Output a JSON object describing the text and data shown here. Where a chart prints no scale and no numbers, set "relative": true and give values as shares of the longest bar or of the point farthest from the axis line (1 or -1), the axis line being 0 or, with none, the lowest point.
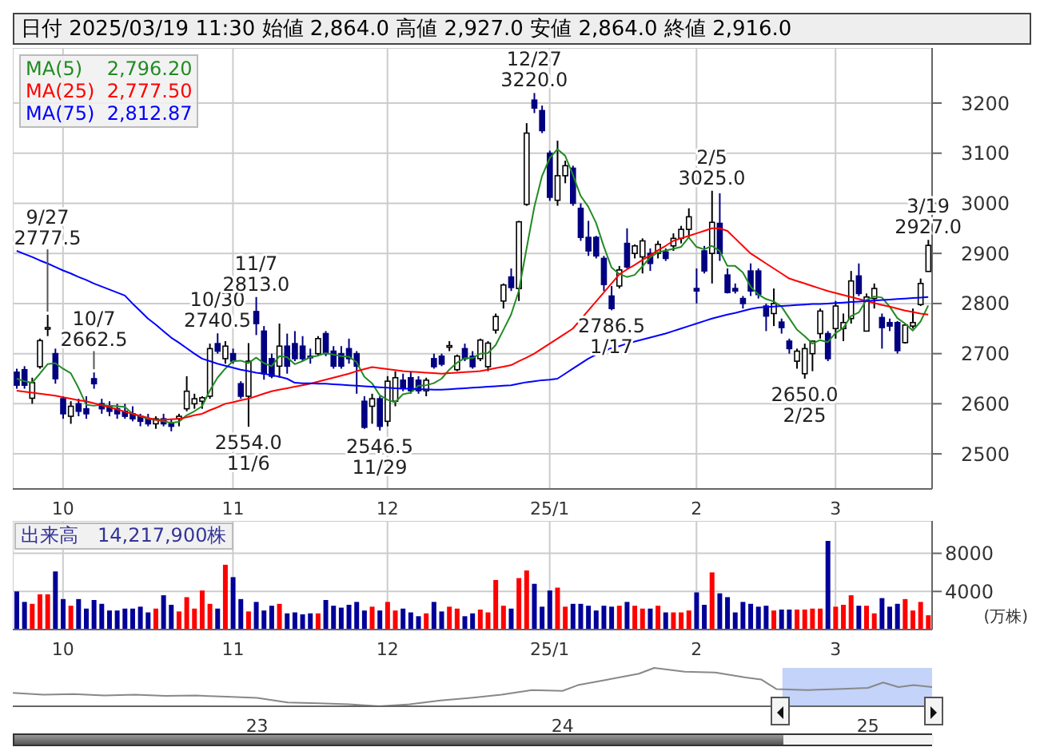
{
  "chart_data": [
    {
      "type": "candlestick",
      "title": "日付 2025/03/19 11:30 始値 2,864.0 高値 2,927.0 安値 2,864.0 終値 2,916.0",
      "colors": [
        "#000080",
        "#000080",
        "#ffffff",
        "#ffffff",
        "#ffffff",
        "#000080",
        "#000080",
        "#ffffff",
        "#000080",
        "#000080",
        "#000080",
        "#000080",
        "#000080",
        "#000080",
        "#000080",
        "#000080",
        "#000080",
        "#000080",
        "#ffffff",
        "#000080",
        "#000080",
        "#ffffff",
        "#ffffff",
        "#ffffff",
        "#ffffff",
        "#ffffff",
        "#000080",
        "#ffffff",
        "#000080",
        "#000080",
        "#ffffff",
        "#000080",
        "#000080",
        "#000080",
        "#ffffff",
        "#000080",
        "#000080",
        "#000080",
        "#000080",
        "#ffffff",
        "#000080",
        "#000080",
        "#000080",
        "#000080",
        "#000080",
        "#000080",
        "#ffffff",
        "#000080",
        "#ffffff",
        "#ffffff",
        "#000080",
        "#000080",
        "#000080",
        "#ffffff",
        "#000080",
        "#000080",
        "#ffffff",
        "#ffffff",
        "#000080",
        "#000080",
        "#ffffff",
        "#ffffff",
        "#ffffff",
        "#ffffff",
        "#000080",
        "#ffffff",
        "#ffffff",
        "#000080",
        "#000080",
        "#000080",
        "#ffffff",
        "#ffffff",
        "#000080",
        "#000080",
        "#000080",
        "#000080",
        "#000080",
        "#000080",
        "#ffffff",
        "#000080",
        "#ffffff",
        "#ffffff",
        "#000080",
        "#ffffff",
        "#000080",
        "#ffffff",
        "#ffffff",
        "#ffffff",
        "#000080",
        "#000080",
        "#ffffff",
        "#000080",
        "#000080",
        "#000080",
        "#000080",
        "#000080",
        "#000080",
        "#000080",
        "#ffffff",
        "#000080",
        "#000080",
        "#ffffff",
        "#ffffff",
        "#ffffff",
        "#ffffff",
        "#000080",
        "#ffffff",
        "#ffffff",
        "#ffffff",
        "#000080",
        "#ffffff",
        "#ffffff",
        "#000080",
        "#000080",
        "#000080",
        "#ffffff",
        "#ffffff",
        "#ffffff",
        "#ffffff"
      ],
      "categories": [
        null,
        null,
        null,
        null,
        null,
        null,
        "10",
        null,
        null,
        null,
        null,
        null,
        null,
        null,
        null,
        null,
        null,
        null,
        null,
        null,
        null,
        null,
        null,
        null,
        null,
        null,
        null,
        null,
        "11",
        null,
        null,
        null,
        null,
        null,
        null,
        null,
        null,
        null,
        null,
        null,
        null,
        null,
        null,
        null,
        null,
        null,
        null,
        null,
        "12",
        null,
        null,
        null,
        null,
        null,
        null,
        null,
        null,
        null,
        null,
        null,
        null,
        null,
        null,
        null,
        null,
        null,
        null,
        null,
        null,
        "25/1",
        null,
        null,
        null,
        null,
        null,
        null,
        null,
        null,
        null,
        null,
        null,
        null,
        null,
        null,
        null,
        null,
        null,
        null,
        "2",
        null,
        null,
        null,
        null,
        null,
        null,
        null,
        null,
        null,
        null,
        null,
        null,
        null,
        null,
        null,
        null,
        null,
        "3",
        null,
        null,
        null,
        null,
        null,
        null,
        null,
        null,
        null,
        null,
        null,
        null
      ],
      "ohlc": [
        [
          2663,
          2670,
          2630,
          2637
        ],
        [
          2668,
          2675,
          2630,
          2637
        ],
        [
          2611,
          2652,
          2600,
          2642
        ],
        [
          2674,
          2730,
          2670,
          2726
        ],
        [
          2750,
          2777.5,
          2735,
          2752
        ],
        [
          2700,
          2710,
          2640,
          2650
        ],
        [
          2610,
          2615,
          2570,
          2580
        ],
        [
          2575,
          2605,
          2560,
          2595
        ],
        [
          2600,
          2610,
          2575,
          2585
        ],
        [
          2590,
          2615,
          2570,
          2580
        ],
        [
          2650,
          2662.5,
          2630,
          2640
        ],
        [
          2600,
          2610,
          2580,
          2590
        ],
        [
          2595,
          2605,
          2575,
          2585
        ],
        [
          2590,
          2600,
          2570,
          2580
        ],
        [
          2585,
          2600,
          2570,
          2575
        ],
        [
          2580,
          2595,
          2565,
          2570
        ],
        [
          2575,
          2580,
          2555,
          2565
        ],
        [
          2570,
          2580,
          2555,
          2560
        ],
        [
          2560,
          2575,
          2550,
          2570
        ],
        [
          2570,
          2580,
          2555,
          2560
        ],
        [
          2560,
          2570,
          2545,
          2555
        ],
        [
          2570,
          2580,
          2555,
          2575
        ],
        [
          2590,
          2655,
          2585,
          2625
        ],
        [
          2600,
          2620,
          2590,
          2610
        ],
        [
          2605,
          2615,
          2590,
          2612
        ],
        [
          2615,
          2720,
          2610,
          2710
        ],
        [
          2720,
          2740.5,
          2700,
          2705
        ],
        [
          2690,
          2725,
          2680,
          2715
        ],
        [
          2700,
          2710,
          2680,
          2685
        ],
        [
          2640,
          2645,
          2610,
          2615
        ],
        [
          2615,
          2721,
          2554,
          2685
        ],
        [
          2784,
          2813,
          2737,
          2760
        ],
        [
          2745,
          2755,
          2648,
          2660
        ],
        [
          2690,
          2700,
          2651,
          2655
        ],
        [
          2675,
          2760,
          2652,
          2715
        ],
        [
          2715,
          2740,
          2660,
          2675
        ],
        [
          2720,
          2745,
          2685,
          2690
        ],
        [
          2715,
          2735,
          2685,
          2690
        ],
        [
          2695,
          2710,
          2680,
          2693
        ],
        [
          2700,
          2735,
          2695,
          2730
        ],
        [
          2740,
          2745,
          2695,
          2700
        ],
        [
          2705,
          2715,
          2670,
          2675
        ],
        [
          2700,
          2715,
          2670,
          2675
        ],
        [
          2710,
          2730,
          2680,
          2690
        ],
        [
          2700,
          2705,
          2620,
          2675
        ],
        [
          2605,
          2615,
          2550,
          2553
        ],
        [
          2595,
          2620,
          2560,
          2610
        ],
        [
          2610,
          2615,
          2546.5,
          2555
        ],
        [
          2565,
          2655,
          2555,
          2645
        ],
        [
          2605,
          2665,
          2595,
          2652
        ],
        [
          2647,
          2660,
          2625,
          2632
        ],
        [
          2652,
          2665,
          2620,
          2626
        ],
        [
          2647,
          2655,
          2620,
          2626
        ],
        [
          2626,
          2652,
          2615,
          2647
        ],
        [
          2690,
          2700,
          2670,
          2674
        ],
        [
          2695,
          2700,
          2675,
          2679
        ],
        [
          2715,
          2725,
          2705,
          2716
        ],
        [
          2668,
          2698,
          2665,
          2695
        ],
        [
          2710,
          2720,
          2685,
          2690
        ],
        [
          2695,
          2705,
          2670,
          2674
        ],
        [
          2690,
          2730,
          2685,
          2727
        ],
        [
          2674,
          2725,
          2665,
          2721
        ],
        [
          2747,
          2780,
          2740,
          2774
        ],
        [
          2805,
          2840,
          2790,
          2837
        ],
        [
          2853,
          2870,
          2825,
          2832
        ],
        [
          2830,
          2965,
          2805,
          2963
        ],
        [
          2998,
          3160,
          2995,
          3140
        ],
        [
          3206,
          3220,
          3180,
          3190
        ],
        [
          3185,
          3195,
          3140,
          3145
        ],
        [
          3100,
          3105,
          3005,
          3012
        ],
        [
          3006,
          3125,
          2995,
          3055
        ],
        [
          3055,
          3085,
          3040,
          3075
        ],
        [
          3070,
          3075,
          2995,
          3000
        ],
        [
          2990,
          3000,
          2925,
          2932
        ],
        [
          2932,
          2965,
          2895,
          2905
        ],
        [
          2932,
          2935,
          2890,
          2895
        ],
        [
          2890,
          2895,
          2825,
          2838
        ],
        [
          2815,
          2835,
          2786.5,
          2790
        ],
        [
          2835,
          2875,
          2830,
          2867
        ],
        [
          2920,
          2950,
          2870,
          2873
        ],
        [
          2900,
          2918,
          2890,
          2915
        ],
        [
          2893,
          2930,
          2860,
          2925
        ],
        [
          2900,
          2910,
          2865,
          2880
        ],
        [
          2900,
          2925,
          2890,
          2918
        ],
        [
          2903,
          2910,
          2885,
          2890
        ],
        [
          2915,
          2940,
          2905,
          2930
        ],
        [
          2930,
          2955,
          2920,
          2948
        ],
        [
          2948,
          2990,
          2930,
          2973
        ],
        [
          2830,
          2870,
          2800,
          2825
        ],
        [
          2905,
          2915,
          2860,
          2865
        ],
        [
          2900,
          3025,
          2840,
          2962
        ],
        [
          2960,
          3020,
          2885,
          2900
        ],
        [
          2857,
          2870,
          2820,
          2822
        ],
        [
          2830,
          2840,
          2820,
          2825
        ],
        [
          2810,
          2815,
          2790,
          2800
        ],
        [
          2865,
          2880,
          2815,
          2825
        ],
        [
          2865,
          2870,
          2810,
          2818
        ],
        [
          2795,
          2800,
          2745,
          2775
        ],
        [
          2780,
          2830,
          2755,
          2800
        ],
        [
          2763,
          2770,
          2740,
          2752
        ],
        [
          2725,
          2730,
          2700,
          2710
        ],
        [
          2685,
          2710,
          2670,
          2705
        ],
        [
          2660,
          2720,
          2650,
          2710
        ],
        [
          2700,
          2725,
          2665,
          2725
        ],
        [
          2740,
          2790,
          2730,
          2785
        ],
        [
          2740,
          2745,
          2685,
          2690
        ],
        [
          2750,
          2805,
          2730,
          2795
        ],
        [
          2750,
          2780,
          2725,
          2762
        ],
        [
          2770,
          2865,
          2760,
          2845
        ],
        [
          2855,
          2880,
          2815,
          2820
        ],
        [
          2745,
          2820,
          2745,
          2813
        ],
        [
          2810,
          2840,
          2790,
          2830
        ],
        [
          2772,
          2780,
          2710,
          2752
        ],
        [
          2762,
          2770,
          2745,
          2755
        ],
        [
          2762,
          2765,
          2700,
          2706
        ],
        [
          2722,
          2760,
          2720,
          2757
        ],
        [
          2755,
          2790,
          2750,
          2762
        ],
        [
          2798,
          2850,
          2795,
          2840
        ],
        [
          2864,
          2927,
          2864,
          2916
        ]
      ],
      "series": [
        {
          "type": "line",
          "name": "MA(5)    2,796.20",
          "color": "#228b22",
          "values": [
            2650,
            2645,
            2642,
            2660,
            2679,
            2681,
            2670,
            2661,
            2632,
            2598,
            2596,
            2598,
            2596,
            2595,
            2594,
            2580,
            2575,
            2570,
            2568,
            2565,
            2562,
            2564,
            2577,
            2585,
            2595,
            2626,
            2652,
            2670,
            2685,
            2686,
            2681,
            2692,
            2681,
            2675,
            2695,
            2693,
            2679,
            2685,
            2693,
            2696,
            2701,
            2698,
            2695,
            2694,
            2683,
            2654,
            2641,
            2617,
            2608,
            2603,
            2619,
            2622,
            2636,
            2637,
            2641,
            2650,
            2668,
            2682,
            2691,
            2691,
            2700,
            2701,
            2717,
            2747,
            2778,
            2825,
            2909,
            2992,
            3054,
            3090,
            3108,
            3095,
            3057,
            3015,
            2993,
            2961,
            2914,
            2872,
            2859,
            2853,
            2857,
            2874,
            2892,
            2902,
            2906,
            2909,
            2913,
            2932,
            2913,
            2908,
            2915,
            2905,
            2875,
            2875,
            2862,
            2834,
            2818,
            2809,
            2804,
            2794,
            2771,
            2748,
            2735,
            2720,
            2727,
            2723,
            2741,
            2751,
            2775,
            2782,
            2807,
            2814,
            2812,
            2794,
            2771,
            2760,
            2746,
            2764,
            2796
          ]
        },
        {
          "type": "line",
          "name": "MA(25)  2,777.50",
          "color": "#ff0000",
          "values": [
            2626,
            2624,
            2622,
            2620,
            2618,
            2616,
            2613,
            2610,
            2607,
            2605,
            2601,
            2597,
            2593,
            2589,
            2584,
            2580,
            2576,
            2572,
            2568,
            2568,
            2569,
            2570,
            2573,
            2577,
            2580,
            2587,
            2593,
            2600,
            2603,
            2607,
            2610,
            2615,
            2620,
            2625,
            2628,
            2631,
            2634,
            2637,
            2640,
            2644,
            2648,
            2652,
            2656,
            2660,
            2665,
            2669,
            2673,
            2671,
            2669,
            2667,
            2665,
            2664,
            2663,
            2662,
            2661,
            2660,
            2661,
            2662,
            2663,
            2664,
            2665,
            2668,
            2671,
            2674,
            2677,
            2685,
            2692,
            2700,
            2710,
            2720,
            2730,
            2740,
            2750,
            2768,
            2786,
            2804,
            2822,
            2840,
            2858,
            2868,
            2877,
            2887,
            2896,
            2906,
            2915,
            2925,
            2930,
            2935,
            2940,
            2945,
            2950,
            2950,
            2945,
            2930,
            2915,
            2900,
            2890,
            2880,
            2870,
            2860,
            2850,
            2845,
            2840,
            2835,
            2830,
            2825,
            2821,
            2817,
            2813,
            2809,
            2805,
            2801,
            2797,
            2794,
            2790,
            2786,
            2783,
            2780,
            2778
          ]
        },
        {
          "type": "line",
          "name": "MA(75)  2,812.87",
          "color": "#0000ff",
          "values": [
            2905,
            2899,
            2893,
            2886,
            2880,
            2873,
            2866,
            2860,
            2853,
            2847,
            2840,
            2834,
            2828,
            2822,
            2816,
            2800,
            2785,
            2770,
            2758,
            2745,
            2732,
            2722,
            2711,
            2700,
            2690,
            2685,
            2680,
            2676,
            2672,
            2668,
            2665,
            2662,
            2660,
            2657,
            2654,
            2650,
            2642,
            2641,
            2641,
            2640,
            2640,
            2639,
            2638,
            2637,
            2636,
            2635,
            2634,
            2633,
            2632,
            2631,
            2630,
            2630,
            2629,
            2629,
            2628,
            2628,
            2629,
            2630,
            2631,
            2632,
            2633,
            2634,
            2635,
            2636,
            2637,
            2640,
            2643,
            2645,
            2647,
            2648,
            2650,
            2660,
            2670,
            2680,
            2690,
            2698,
            2705,
            2711,
            2715,
            2720,
            2724,
            2728,
            2732,
            2736,
            2740,
            2745,
            2750,
            2755,
            2760,
            2765,
            2770,
            2774,
            2778,
            2781,
            2785,
            2789,
            2792,
            2793,
            2794,
            2795,
            2796,
            2797,
            2798,
            2799,
            2799,
            2800,
            2801,
            2802,
            2803,
            2804,
            2805,
            2806,
            2807,
            2808,
            2809,
            2810,
            2811,
            2812,
            2813
          ]
        }
      ],
      "ylim": [
        2430,
        3310
      ],
      "yticks": [
        2500,
        2600,
        2700,
        2800,
        2900,
        3000,
        3100,
        3200
      ],
      "grid": true,
      "legend": "top left",
      "annotations": [
        {
          "text": "9/27\n2777.5",
          "y": 2777.5
        },
        {
          "text": "10/7\n2662.5",
          "y": 2662.5
        },
        {
          "text": "10/30\n2740.5",
          "y": 2740.5
        },
        {
          "text": "11/7\n2813.0",
          "y": 2813
        },
        {
          "text": "2554.0\n11/6",
          "y": 2554
        },
        {
          "text": "2546.5\n11/29",
          "y": 2546.5
        },
        {
          "text": "12/27\n3220.0",
          "y": 3220
        },
        {
          "text": "2786.5\n1/17",
          "y": 2786.5
        },
        {
          "text": "2/5\n3025.0",
          "y": 3025
        },
        {
          "text": "2650.0\n2/25",
          "y": 2650
        },
        {
          "text": "3/19\n2927.0",
          "y": 2927
        }
      ]
    },
    {
      "type": "bar",
      "title": "出来高　14,217,900株",
      "ylabel": "(万株)",
      "categories": [
        null,
        null,
        null,
        null,
        null,
        null,
        "10",
        null,
        null,
        null,
        null,
        null,
        null,
        null,
        null,
        null,
        null,
        null,
        null,
        null,
        null,
        null,
        null,
        null,
        null,
        null,
        null,
        null,
        "11",
        null,
        null,
        null,
        null,
        null,
        null,
        null,
        null,
        null,
        null,
        null,
        null,
        null,
        null,
        null,
        null,
        null,
        null,
        null,
        "12",
        null,
        null,
        null,
        null,
        null,
        null,
        null,
        null,
        null,
        null,
        null,
        null,
        null,
        null,
        null,
        null,
        null,
        null,
        null,
        null,
        "25/1",
        null,
        null,
        null,
        null,
        null,
        null,
        null,
        null,
        null,
        null,
        null,
        null,
        null,
        null,
        null,
        null,
        null,
        null,
        "2",
        null,
        null,
        null,
        null,
        null,
        null,
        null,
        null,
        null,
        null,
        null,
        null,
        null,
        null,
        null,
        null,
        null,
        "3",
        null,
        null,
        null,
        null,
        null,
        null,
        null,
        null,
        null,
        null,
        null,
        null
      ],
      "values": [
        4000,
        2900,
        2700,
        3700,
        3700,
        6100,
        3200,
        2500,
        3200,
        2200,
        3100,
        2700,
        2000,
        2000,
        2200,
        2200,
        2400,
        1800,
        2200,
        3600,
        2600,
        1900,
        3400,
        2200,
        4100,
        2700,
        2200,
        6800,
        5500,
        3200,
        1900,
        2900,
        2000,
        2500,
        2700,
        1700,
        1800,
        1600,
        1700,
        1700,
        3100,
        2500,
        2300,
        2600,
        2900,
        2000,
        2400,
        2000,
        2900,
        2000,
        2200,
        1800,
        1400,
        1700,
        2900,
        1900,
        2400,
        2200,
        1400,
        1700,
        2100,
        1800,
        5200,
        2500,
        2200,
        5400,
        6200,
        4800,
        2400,
        4100,
        4400,
        2400,
        2700,
        2700,
        2500,
        2000,
        2500,
        2400,
        2500,
        2900,
        2500,
        2200,
        2200,
        2500,
        1800,
        1800,
        1800,
        2000,
        3900,
        2600,
        6000,
        3800,
        3400,
        1800,
        2900,
        2700,
        2400,
        2500,
        2000,
        2100,
        2100,
        2100,
        2100,
        2200,
        2200,
        9300,
        2400,
        2600,
        3600,
        2500,
        2500,
        1700,
        3300,
        2400,
        2700,
        3200,
        2000,
        2900,
        1500
      ],
      "colors": [
        "#000099",
        "#000099",
        "#ff0000",
        "#ff0000",
        "#ff0000",
        "#000099",
        "#000099",
        "#ff0000",
        "#000099",
        "#000099",
        "#000099",
        "#000099",
        "#000099",
        "#000099",
        "#000099",
        "#000099",
        "#000099",
        "#000099",
        "#ff0000",
        "#000099",
        "#000099",
        "#ff0000",
        "#ff0000",
        "#ff0000",
        "#ff0000",
        "#ff0000",
        "#000099",
        "#ff0000",
        "#000099",
        "#000099",
        "#ff0000",
        "#000099",
        "#000099",
        "#000099",
        "#ff0000",
        "#000099",
        "#000099",
        "#000099",
        "#000099",
        "#ff0000",
        "#000099",
        "#000099",
        "#000099",
        "#000099",
        "#000099",
        "#000099",
        "#ff0000",
        "#000099",
        "#ff0000",
        "#ff0000",
        "#000099",
        "#000099",
        "#000099",
        "#ff0000",
        "#000099",
        "#000099",
        "#ff0000",
        "#ff0000",
        "#000099",
        "#000099",
        "#ff0000",
        "#ff0000",
        "#ff0000",
        "#ff0000",
        "#000099",
        "#ff0000",
        "#ff0000",
        "#000099",
        "#000099",
        "#000099",
        "#ff0000",
        "#ff0000",
        "#000099",
        "#000099",
        "#000099",
        "#000099",
        "#000099",
        "#000099",
        "#ff0000",
        "#000099",
        "#ff0000",
        "#ff0000",
        "#000099",
        "#ff0000",
        "#000099",
        "#ff0000",
        "#ff0000",
        "#ff0000",
        "#000099",
        "#000099",
        "#ff0000",
        "#000099",
        "#000099",
        "#000099",
        "#000099",
        "#000099",
        "#000099",
        "#000099",
        "#ff0000",
        "#000099",
        "#000099",
        "#ff0000",
        "#ff0000",
        "#ff0000",
        "#ff0000",
        "#000099",
        "#ff0000",
        "#ff0000",
        "#ff0000",
        "#000099",
        "#ff0000",
        "#ff0000",
        "#000099",
        "#000099",
        "#000099",
        "#ff0000",
        "#ff0000",
        "#ff0000",
        "#ff0000"
      ],
      "ylim": [
        0,
        11400
      ],
      "yticks": [
        4000,
        8000
      ],
      "grid": true
    },
    {
      "type": "line",
      "relative": true,
      "color": "#888888",
      "tick_labels": "x",
      "x": [
        2022.2,
        2022.3,
        2022.4,
        2022.5,
        2022.6,
        2022.7,
        2022.8,
        2022.9,
        2023.0,
        2023.1,
        2023.2,
        2023.3,
        2023.4,
        2023.5,
        2023.6,
        2023.7,
        2023.8,
        2023.9,
        2024.0,
        2024.05,
        2024.15,
        2024.25,
        2024.3,
        2024.4,
        2024.5,
        2024.6,
        2024.65,
        2024.7,
        2024.8,
        2024.9,
        2025.0,
        2025.05,
        2025.1,
        2025.15,
        2025.21
      ],
      "values": [
        0.35,
        0.3,
        0.32,
        0.28,
        0.3,
        0.27,
        0.28,
        0.25,
        0.22,
        0.1,
        0.08,
        0.05,
        0,
        0.05,
        0.15,
        0.22,
        0.3,
        0.42,
        0.4,
        0.55,
        0.7,
        0.85,
        1,
        0.9,
        0.88,
        0.75,
        0.7,
        0.45,
        0.42,
        0.45,
        0.48,
        0.62,
        0.5,
        0.55,
        0.5
      ],
      "xlim": [
        2022.2,
        2025.21
      ],
      "xticks": [
        {
          "value": 2023,
          "label": "23"
        },
        {
          "value": 2024,
          "label": "24"
        },
        {
          "value": 2025,
          "label": "25"
        }
      ],
      "bands": [
        {
          "axis": "x",
          "from": 2024.72,
          "to": 2025.21,
          "color": "#b4c8f8"
        }
      ]
    }
  ]
}
